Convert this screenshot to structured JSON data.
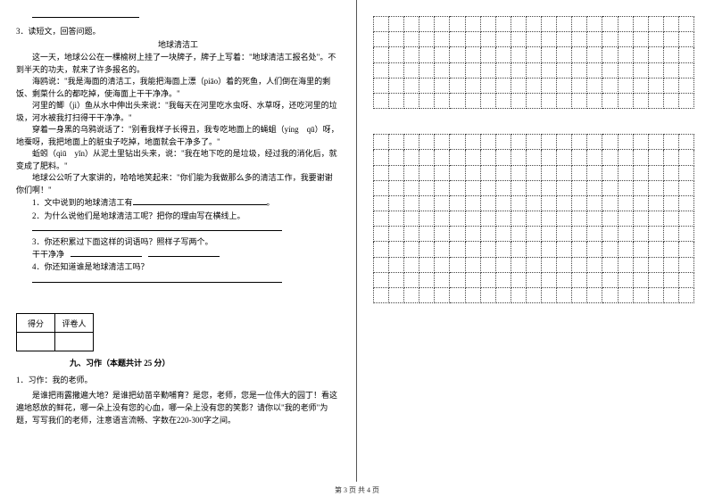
{
  "left": {
    "q3_number": "3．读短文，回答问题。",
    "title": "地球清洁工",
    "p1": "这一天，地球公公在一棵榆树上挂了一块牌子，牌子上写着：\"地球清洁工报名处\"。不到半天的功夫，就来了许多报名的。",
    "p2": "海鸥说：\"我是海面的清洁工，我能把海面上漂（piāo）着的死鱼，人们倒在海里的剩饭、剩菜什么的都吃掉，使海面上干干净净。\"",
    "p3": "河里的鲫（jì）鱼从水中伸出头来说：\"我每天在河里吃水虫呀、水草呀，还吃河里的垃圾，河水被我打扫得干干净净。\"",
    "p4": "穿着一身黑的乌鸦说话了：\"别看我样子长得丑，我专吃地面上的蝇蛆（yíng　qū）呀，地蚕呀，我把地面上的脏虫子吃掉，地面就会干净多了。\"",
    "p5": "蚯蚓（qiū　yǐn）从泥土里钻出头来，说：\"我在地下吃的是垃圾，经过我的消化后，就变成了肥料。\"",
    "p6": "地球公公听了大家讲的，哈哈地笑起来：\"你们能为我做那么多的清洁工作，我要谢谢你们啊！\"",
    "s1_label": "1．文中说到的地球清洁工有",
    "s2": "2．为什么说他们是地球清洁工呢？把你的理由写在横线上。",
    "s3": "3．你还积累过下面这样的词语吗？照样子写两个。",
    "s3_word": "干干净净",
    "s4": "4．你还知道谁是地球清洁工吗？",
    "score_table": {
      "c1": "得分",
      "c2": "评卷人"
    },
    "section": "九、习作（本题共计 25 分）",
    "essay_num": "1．习作：我的老师。",
    "essay_body": "是谁把雨露撒遍大地？是谁把幼苗辛勤哺育？是您，老师，您是一位伟大的园丁！看这遍地怒放的鲜花，哪一朵上没有您的心血，哪一朵上没有您的笑影？请你以\"我的老师\"为题，写写我们的老师，注意语言流畅、字数在220-300字之间。"
  },
  "grids": {
    "cols": 21,
    "rows1": 6,
    "rows2": 11
  },
  "footer": "第 3 页  共 4 页"
}
